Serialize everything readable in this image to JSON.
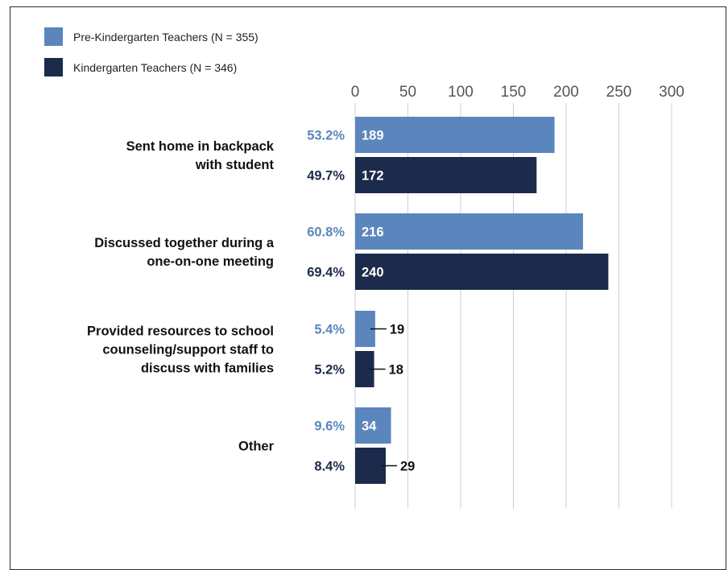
{
  "chart_data": {
    "type": "bar",
    "orientation": "horizontal",
    "xlim": [
      0,
      300
    ],
    "ticks": [
      0,
      50,
      100,
      150,
      200,
      250,
      300
    ],
    "grid": true,
    "legend_position": "top-left",
    "categories": [
      [
        "Sent home in backpack",
        "with student"
      ],
      [
        "Discussed together during a",
        "one-on-one meeting"
      ],
      [
        "Provided resources to school",
        "counseling/support staff to",
        "discuss with families"
      ],
      [
        "Other"
      ]
    ],
    "series": [
      {
        "name": "Pre-Kindergarten Teachers (N = 355)",
        "color": "#5b86bd",
        "values": [
          189,
          216,
          19,
          34
        ],
        "percents": [
          "53.2%",
          "60.8%",
          "5.4%",
          "9.6%"
        ]
      },
      {
        "name": "Kindergarten Teachers (N = 346)",
        "color": "#1c2a4b",
        "values": [
          172,
          240,
          18,
          29
        ],
        "percents": [
          "49.7%",
          "69.4%",
          "5.2%",
          "8.4%"
        ]
      }
    ]
  }
}
